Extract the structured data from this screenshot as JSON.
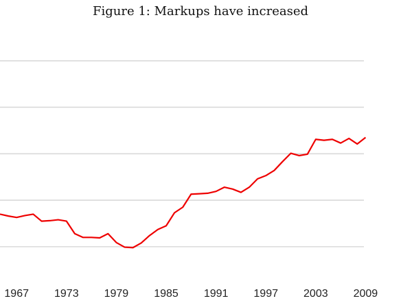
{
  "chart_data": {
    "type": "line",
    "title": "Figure 1:  Markups have increased",
    "xlabel": "",
    "ylabel": "",
    "x_ticks": [
      "1967",
      "1973",
      "1979",
      "1985",
      "1991",
      "1997",
      "2003",
      "2009"
    ],
    "xlim": [
      1965,
      2008.8
    ],
    "ylim": [
      1.16,
      1.66
    ],
    "grid": true,
    "colors": {
      "line": "#ee0000",
      "grid": "#d9d9d9"
    },
    "series": [
      {
        "x": [
          1965,
          1966,
          1967,
          1968,
          1969,
          1970,
          1971,
          1972,
          1973,
          1974,
          1975,
          1976,
          1977,
          1978,
          1979,
          1980,
          1981,
          1982,
          1983,
          1984,
          1985,
          1986,
          1987,
          1988,
          1989,
          1990,
          1991,
          1992,
          1993,
          1994,
          1995,
          1996,
          1997,
          1998,
          1999,
          2000,
          2001,
          2002,
          2003,
          2004,
          2005,
          2006,
          2007,
          2008,
          2009
        ],
        "values": [
          1.27,
          1.266,
          1.263,
          1.267,
          1.27,
          1.255,
          1.256,
          1.258,
          1.255,
          1.228,
          1.22,
          1.22,
          1.219,
          1.228,
          1.209,
          1.199,
          1.198,
          1.208,
          1.224,
          1.237,
          1.245,
          1.273,
          1.285,
          1.313,
          1.314,
          1.315,
          1.319,
          1.328,
          1.324,
          1.317,
          1.328,
          1.346,
          1.353,
          1.364,
          1.383,
          1.401,
          1.396,
          1.399,
          1.431,
          1.429,
          1.431,
          1.423,
          1.433,
          1.421,
          1.435
        ]
      }
    ]
  }
}
